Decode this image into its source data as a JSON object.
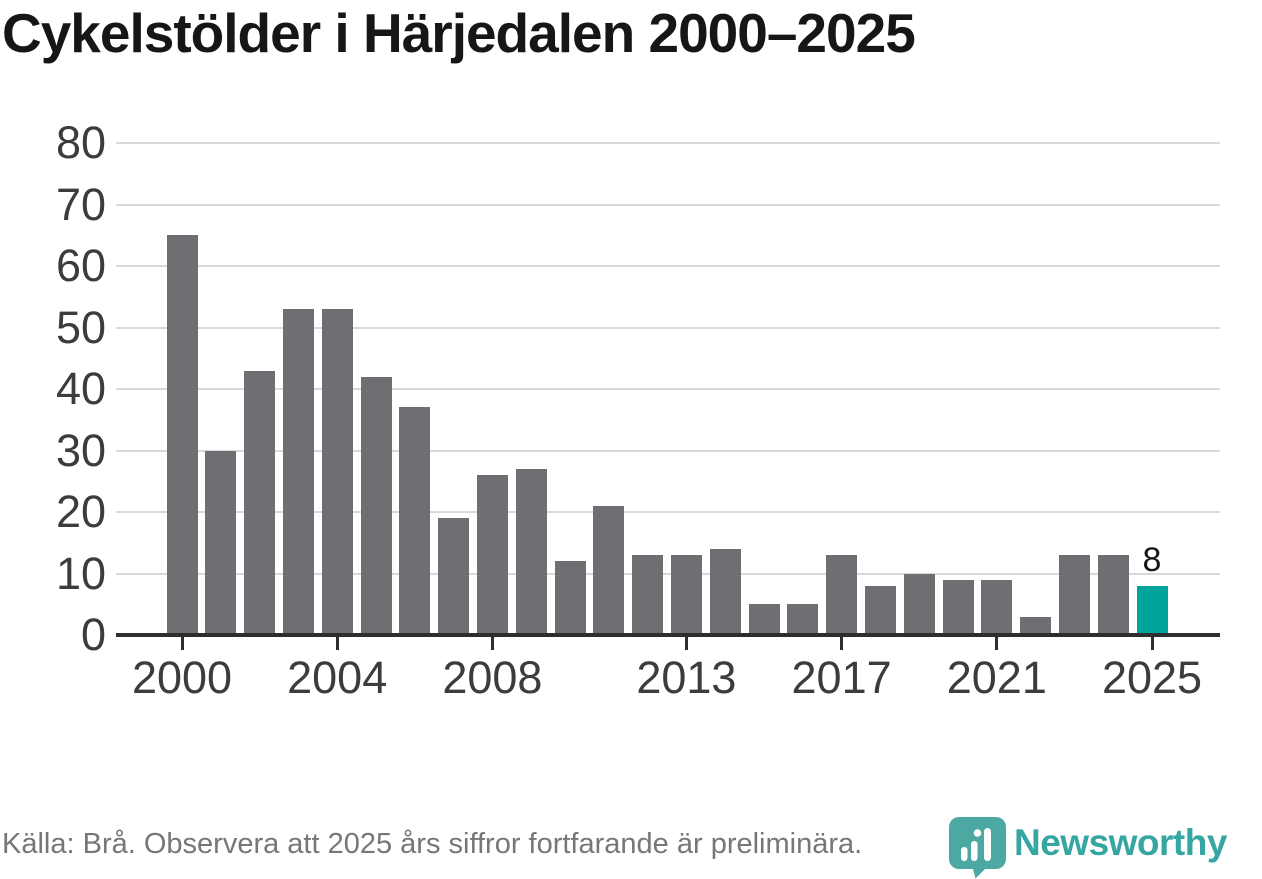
{
  "title": "Cykelstölder i Härjedalen 2000–2025",
  "footer": {
    "source_note": "Källa: Brå. Observera att 2025 års siffror fortfarande är preliminära."
  },
  "branding": {
    "logo_text": "Newsworthy",
    "logo_icon": "newsworthy-pin-barchart-icon"
  },
  "colors": {
    "bar": "#6E6E73",
    "highlight_bar": "#00A49B",
    "gridline": "#D9D9D9",
    "axis": "#2E2E31",
    "tick_label": "#3B3B40",
    "title_text": "#161616",
    "footer_text": "#76767B",
    "logo_pin": "#4BA8A2",
    "logo_wordmark": "#35A6A2"
  },
  "chart_data": {
    "type": "bar",
    "title": "Cykelstölder i Härjedalen 2000–2025",
    "x": [
      2000,
      2001,
      2002,
      2003,
      2004,
      2005,
      2006,
      2007,
      2008,
      2009,
      2010,
      2011,
      2012,
      2013,
      2014,
      2015,
      2016,
      2017,
      2018,
      2019,
      2020,
      2021,
      2022,
      2023,
      2024,
      2025
    ],
    "values": [
      65,
      30,
      43,
      53,
      53,
      42,
      37,
      19,
      26,
      27,
      12,
      21,
      13,
      13,
      14,
      5,
      5,
      13,
      8,
      10,
      9,
      9,
      3,
      13,
      13,
      8
    ],
    "highlight_year": 2025,
    "highlight_value_label": "8",
    "xlabel": "",
    "ylabel": "",
    "ylim": [
      0,
      80
    ],
    "y_ticks": [
      0,
      10,
      20,
      30,
      40,
      50,
      60,
      70,
      80
    ],
    "x_tick_years": [
      2000,
      2004,
      2008,
      2013,
      2017,
      2021,
      2025
    ],
    "grid": "horizontal-only",
    "legend": "none"
  }
}
